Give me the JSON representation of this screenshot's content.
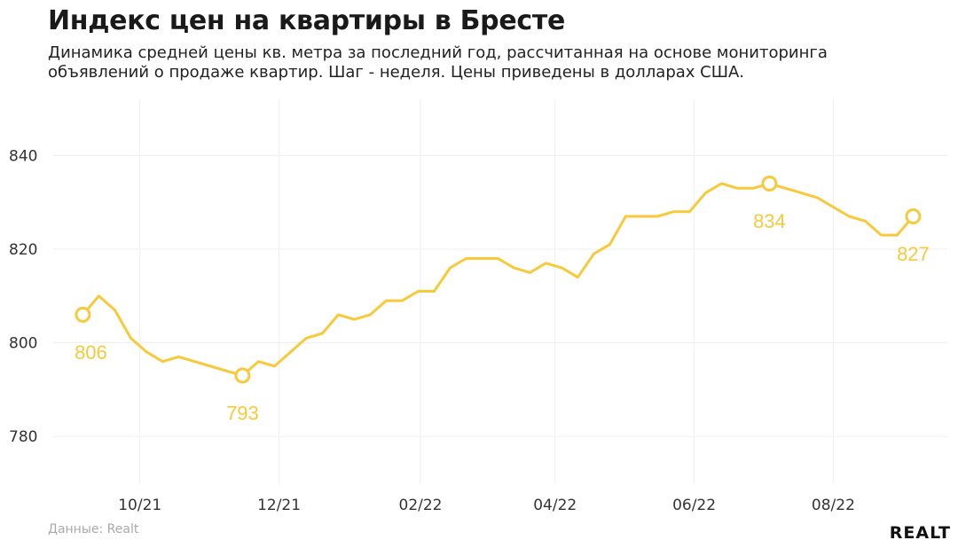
{
  "header": {
    "title": "Индекс цен на квартиры в Бресте",
    "subtitle": "Динамика средней цены кв. метра за последний год, рассчитанная на основе мониторинга объявлений о продаже квартир. Шаг - неделя. Цены приведены в долларах США."
  },
  "footer": {
    "source": "Данные: Realt",
    "brand": "REALT"
  },
  "chart_data": {
    "type": "line",
    "title": "Индекс цен на квартиры в Бресте",
    "xlabel": "",
    "ylabel": "",
    "x_ticks": [
      "10/21",
      "12/21",
      "02/22",
      "04/22",
      "06/22",
      "08/22"
    ],
    "x": [
      "2021-09-06",
      "2021-09-13",
      "2021-09-20",
      "2021-09-27",
      "2021-10-04",
      "2021-10-11",
      "2021-10-18",
      "2021-10-25",
      "2021-11-01",
      "2021-11-08",
      "2021-11-15",
      "2021-11-22",
      "2021-11-29",
      "2021-12-06",
      "2021-12-13",
      "2021-12-20",
      "2021-12-27",
      "2022-01-03",
      "2022-01-10",
      "2022-01-17",
      "2022-01-24",
      "2022-01-31",
      "2022-02-07",
      "2022-02-14",
      "2022-02-21",
      "2022-02-28",
      "2022-03-07",
      "2022-03-14",
      "2022-03-21",
      "2022-03-28",
      "2022-04-04",
      "2022-04-11",
      "2022-04-18",
      "2022-04-25",
      "2022-05-02",
      "2022-05-09",
      "2022-05-16",
      "2022-05-23",
      "2022-05-30",
      "2022-06-06",
      "2022-06-13",
      "2022-06-20",
      "2022-06-27",
      "2022-07-04",
      "2022-07-11",
      "2022-07-18",
      "2022-07-25",
      "2022-08-01",
      "2022-08-08",
      "2022-08-15",
      "2022-08-22",
      "2022-08-29",
      "2022-09-05"
    ],
    "y": [
      806,
      810,
      807,
      801,
      798,
      796,
      797,
      796,
      795,
      794,
      793,
      796,
      795,
      798,
      801,
      802,
      806,
      805,
      806,
      809,
      809,
      811,
      811,
      816,
      818,
      818,
      818,
      816,
      815,
      817,
      816,
      814,
      819,
      821,
      827,
      827,
      827,
      828,
      828,
      832,
      834,
      833,
      833,
      834,
      833,
      832,
      831,
      829,
      827,
      826,
      823,
      823,
      827
    ],
    "y_ticks": [
      780,
      800,
      820,
      840
    ],
    "ylim": [
      770,
      852
    ],
    "grid": true,
    "highlighted_points": [
      {
        "x": "2021-09-06",
        "y": 806,
        "label": "806"
      },
      {
        "x": "2021-11-15",
        "y": 793,
        "label": "793"
      },
      {
        "x": "2022-07-04",
        "y": 834,
        "label": "834"
      },
      {
        "x": "2022-09-05",
        "y": 827,
        "label": "827"
      }
    ],
    "line_color": "#f8c93b",
    "grid_color": "#efefef"
  }
}
